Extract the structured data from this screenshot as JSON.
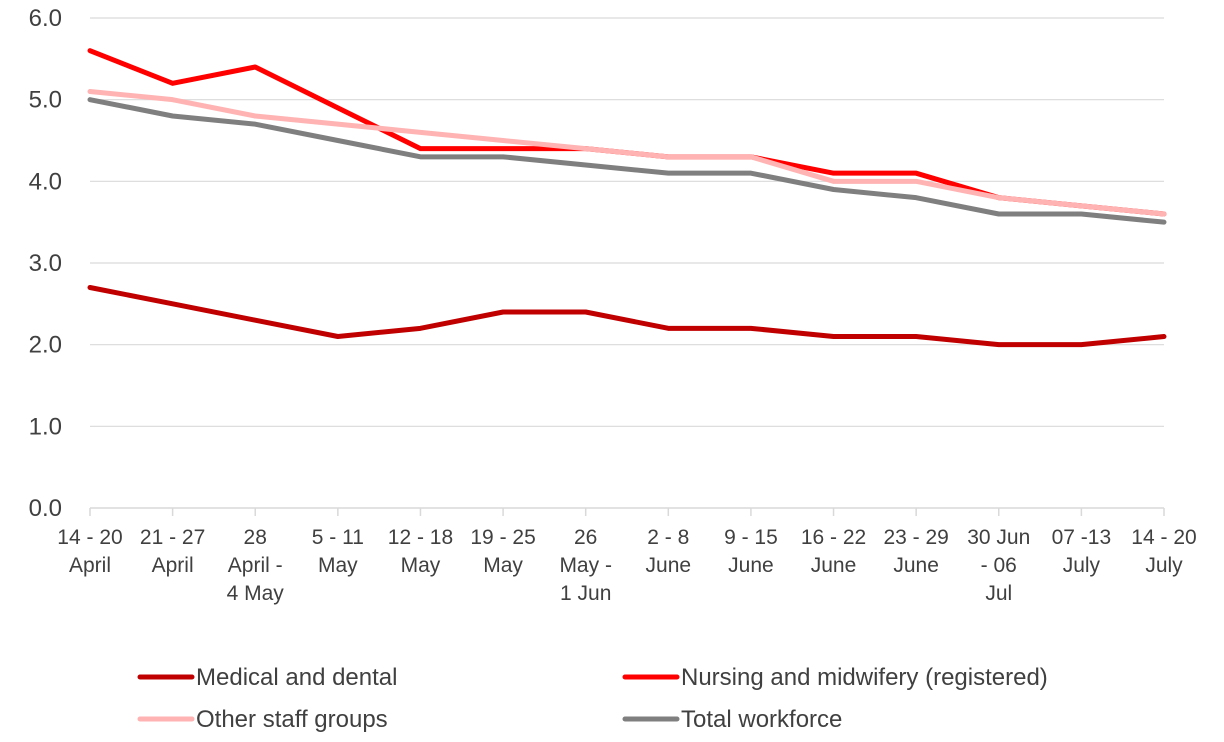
{
  "chart_data": {
    "type": "line",
    "title": "",
    "xlabel": "",
    "ylabel": "",
    "ylim": [
      0,
      6
    ],
    "yticks": [
      "0.0",
      "1.0",
      "2.0",
      "3.0",
      "4.0",
      "5.0",
      "6.0"
    ],
    "grid": true,
    "legend_position": "bottom",
    "categories": [
      [
        "14 - 20",
        "April"
      ],
      [
        "21 - 27",
        "April"
      ],
      [
        "28",
        "April -",
        "4 May"
      ],
      [
        "5 - 11",
        "May"
      ],
      [
        "12 - 18",
        "May"
      ],
      [
        "19 - 25",
        "May"
      ],
      [
        "26",
        "May -",
        "1 Jun"
      ],
      [
        "2 - 8",
        "June"
      ],
      [
        "9 - 15",
        "June"
      ],
      [
        "16 - 22",
        "June"
      ],
      [
        "23 - 29",
        "June"
      ],
      [
        "30 Jun",
        "- 06",
        "Jul"
      ],
      [
        "07 -13",
        "July"
      ],
      [
        "14 - 20",
        "July"
      ]
    ],
    "series": [
      {
        "name": "Medical and dental",
        "color": "#c00000",
        "values": [
          2.7,
          2.5,
          2.3,
          2.1,
          2.2,
          2.4,
          2.4,
          2.2,
          2.2,
          2.1,
          2.1,
          2.0,
          2.0,
          2.1
        ]
      },
      {
        "name": "Nursing and midwifery (registered)",
        "color": "#ff0000",
        "values": [
          5.6,
          5.2,
          5.4,
          4.9,
          4.4,
          4.4,
          4.4,
          4.3,
          4.3,
          4.1,
          4.1,
          3.8,
          3.7,
          3.6
        ]
      },
      {
        "name": "Other staff groups",
        "color": "#ffb3b3",
        "values": [
          5.1,
          5.0,
          4.8,
          4.7,
          4.6,
          4.5,
          4.4,
          4.3,
          4.3,
          4.0,
          4.0,
          3.8,
          3.7,
          3.6
        ]
      },
      {
        "name": "Total workforce",
        "color": "#7f7f7f",
        "values": [
          5.0,
          4.8,
          4.7,
          4.5,
          4.3,
          4.3,
          4.2,
          4.1,
          4.1,
          3.9,
          3.8,
          3.6,
          3.6,
          3.5
        ]
      }
    ]
  }
}
